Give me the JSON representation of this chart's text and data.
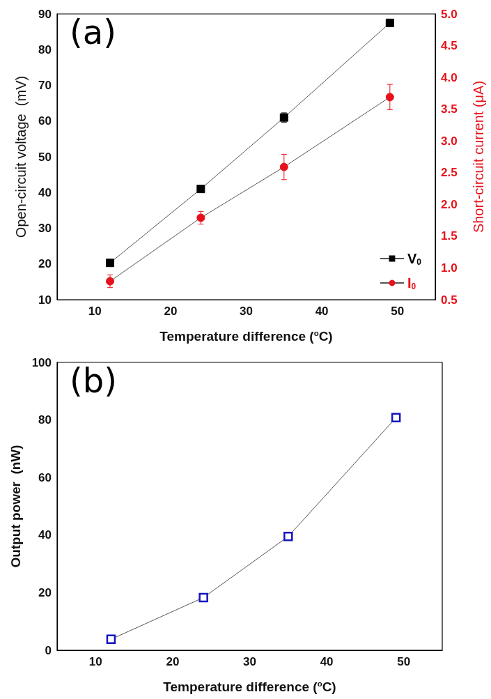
{
  "chart_data": [
    {
      "type": "line",
      "annotations": [
        "(a)"
      ],
      "xlabel": "Temperature difference ($^{o}$C)",
      "ylabel": "Open-circuit voltage  (mV)",
      "y2label": "Short-circuit current (μA)",
      "x": [
        12,
        24,
        35,
        49
      ],
      "xlim": [
        5,
        55
      ],
      "xticks": [
        10,
        20,
        30,
        40,
        50
      ],
      "ylim": [
        10,
        90
      ],
      "yticks": [
        10,
        20,
        30,
        40,
        50,
        60,
        70,
        80,
        90
      ],
      "y2lim": [
        0.5,
        5.0
      ],
      "y2ticks": [
        {
          "value": 0.5,
          "label": "0.5"
        },
        {
          "value": 1,
          "label": "1.0"
        },
        {
          "value": 1.5,
          "label": "1.5"
        },
        {
          "value": 2,
          "label": "2.0"
        },
        {
          "value": 2.5,
          "label": "2.5"
        },
        {
          "value": 3,
          "label": "3.0"
        },
        {
          "value": 3.5,
          "label": "3.5"
        },
        {
          "value": 4,
          "label": "4.0"
        },
        {
          "value": 4.5,
          "label": "4.5"
        },
        {
          "value": 5,
          "label": "5.0"
        }
      ],
      "legend": "bottom right",
      "grid": false,
      "series": [
        {
          "name": "V$_{0}$",
          "color": "#000000",
          "marker": "square",
          "values": [
            20.3,
            41,
            61,
            87.5
          ],
          "errors": [
            0.7,
            0.8,
            1.3,
            1.0
          ]
        },
        {
          "name": "I$_{0}$",
          "color": "#e8101a",
          "marker": "circle",
          "axis": "y2",
          "values": [
            0.79,
            1.79,
            2.59,
            3.69
          ],
          "errors": [
            0.1,
            0.1,
            0.2,
            0.2
          ]
        }
      ]
    },
    {
      "type": "line",
      "annotations": [
        "(b)"
      ],
      "xlabel": "Temperature difference ($^{o}$C)",
      "ylabel": "Output power  (nW)",
      "x": [
        12,
        24,
        35,
        49
      ],
      "xlim": [
        5,
        55
      ],
      "xticks": [
        10,
        20,
        30,
        40,
        50
      ],
      "ylim": [
        0,
        100
      ],
      "yticks": [
        0,
        20,
        40,
        60,
        80,
        100
      ],
      "legend": false,
      "grid": false,
      "marker": "square",
      "series": [
        {
          "color": "#1515c0",
          "values": [
            3.8,
            18.3,
            39.5,
            80.8
          ]
        }
      ]
    }
  ]
}
